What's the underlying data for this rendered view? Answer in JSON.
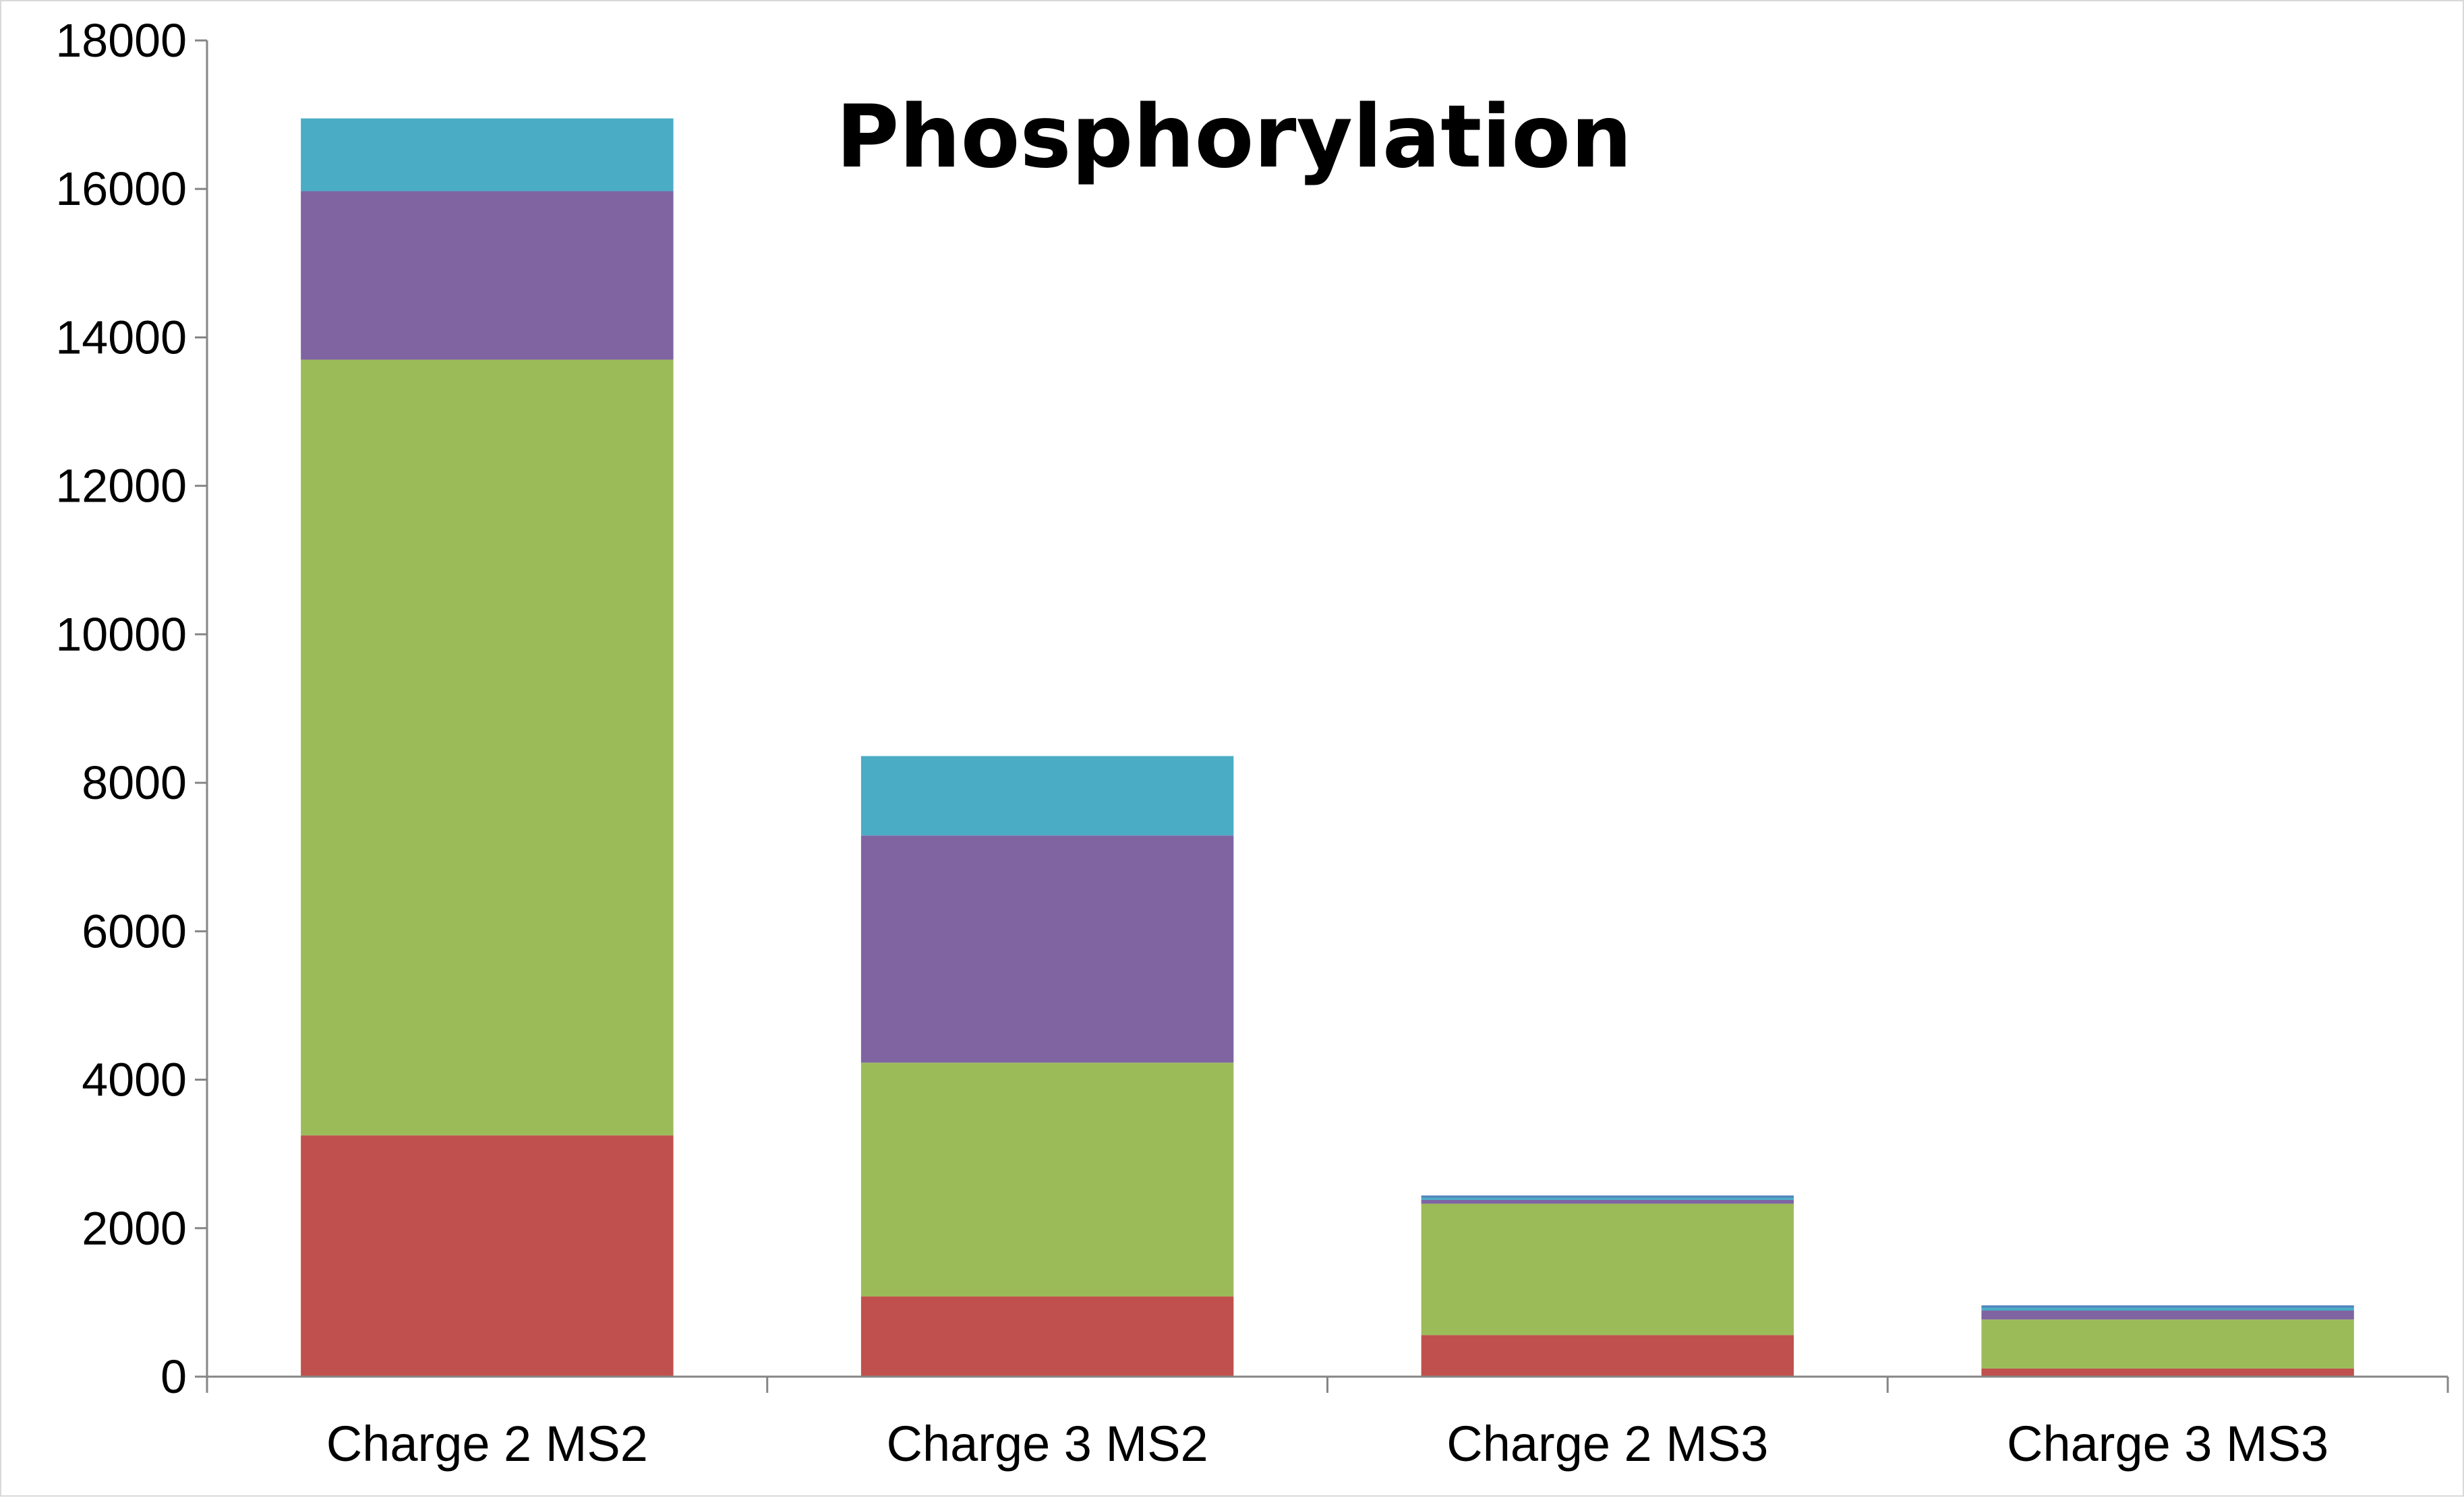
{
  "chart_data": {
    "type": "bar",
    "stacked": true,
    "title": "Phosphorylation",
    "xlabel": "",
    "ylabel": "",
    "ylim": [
      0,
      18000
    ],
    "yticks": [
      "0",
      "2000",
      "4000",
      "6000",
      "8000",
      "10000",
      "12000",
      "14000",
      "16000",
      "18000"
    ],
    "grid": false,
    "legend": "none",
    "categories": [
      "Charge 2 MS2",
      "Charge 3 MS2",
      "Charge 2 MS3",
      "Charge 3 MS3"
    ],
    "series": [
      {
        "color": "#c0504d",
        "values": [
          3250,
          1080,
          560,
          110
        ]
      },
      {
        "color": "#9bbb59",
        "values": [
          10450,
          3150,
          1770,
          660
        ]
      },
      {
        "color": "#8064a2",
        "values": [
          2270,
          3060,
          50,
          120
        ]
      },
      {
        "color": "#4bacc6",
        "values": [
          980,
          1070,
          30,
          40
        ]
      },
      {
        "color": "#4f81bd",
        "values": [
          0,
          0,
          30,
          30
        ]
      }
    ]
  }
}
